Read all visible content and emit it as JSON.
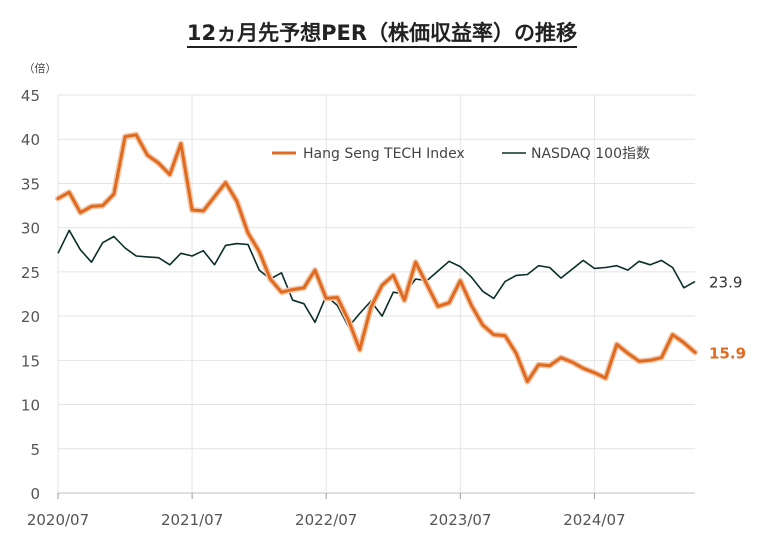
{
  "title": "12ヵ月先予想PER（株価収益率）の推移",
  "chart_data": {
    "type": "line",
    "unit": "（倍）",
    "ylim": [
      0,
      45
    ],
    "yticks": [
      0,
      5,
      10,
      15,
      20,
      25,
      30,
      35,
      40,
      45
    ],
    "xticks": [
      "2020/07",
      "2021/07",
      "2022/07",
      "2023/07",
      "2024/07"
    ],
    "x_range": [
      0,
      57
    ],
    "grid": true,
    "legend_position": "top-right",
    "series": [
      {
        "name": "Hang Seng TECH Index",
        "color": "#e06a1f",
        "last_label": "15.9",
        "values": [
          33.3,
          34.0,
          31.7,
          32.4,
          32.5,
          33.8,
          40.3,
          40.5,
          38.2,
          37.3,
          36.0,
          39.5,
          32.0,
          31.9,
          33.5,
          35.1,
          33.0,
          29.4,
          27.3,
          24.2,
          22.7,
          23.0,
          23.2,
          25.2,
          22.0,
          22.1,
          19.5,
          16.2,
          21.0,
          23.5,
          24.6,
          21.8,
          26.1,
          23.6,
          21.1,
          21.5,
          24.0,
          21.2,
          19.0,
          17.9,
          17.8,
          15.8,
          12.6,
          14.5,
          14.4,
          15.3,
          14.8,
          14.1,
          13.6,
          13.0,
          16.8,
          15.8,
          14.9,
          15.0,
          15.3,
          17.9,
          17.0,
          15.9
        ]
      },
      {
        "name": "NASDAQ 100指数",
        "color": "#0b2e2b",
        "last_label": "23.9",
        "values": [
          27.1,
          29.7,
          27.5,
          26.1,
          28.3,
          29.0,
          27.7,
          26.8,
          26.7,
          26.6,
          25.8,
          27.1,
          26.8,
          27.4,
          25.8,
          28.0,
          28.2,
          28.1,
          25.2,
          24.2,
          24.9,
          21.8,
          21.4,
          19.3,
          22.3,
          21.2,
          18.8,
          20.3,
          21.7,
          20.0,
          22.7,
          22.5,
          24.2,
          24.0,
          25.1,
          26.2,
          25.6,
          24.4,
          22.8,
          22.0,
          23.9,
          24.6,
          24.7,
          25.7,
          25.5,
          24.3,
          25.3,
          26.3,
          25.4,
          25.5,
          25.7,
          25.2,
          26.2,
          25.8,
          26.3,
          25.5,
          23.2,
          23.9
        ]
      }
    ]
  }
}
